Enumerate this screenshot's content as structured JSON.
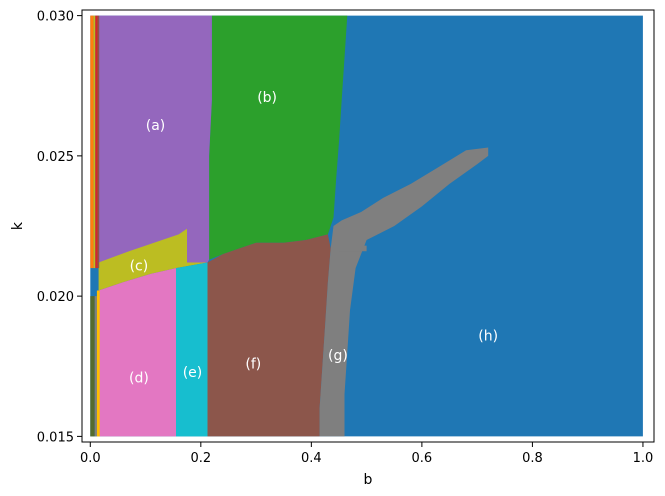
{
  "chart_data": {
    "type": "heatmap",
    "title": "",
    "xlabel": "b",
    "ylabel": "k",
    "xlim": [
      -0.015,
      1.02
    ],
    "ylim": [
      0.0148,
      0.0302
    ],
    "x_ticks": [
      {
        "value": 0.0,
        "label": "0.0"
      },
      {
        "value": 0.2,
        "label": "0.2"
      },
      {
        "value": 0.4,
        "label": "0.4"
      },
      {
        "value": 0.6,
        "label": "0.6"
      },
      {
        "value": 0.8,
        "label": "0.8"
      },
      {
        "value": 1.0,
        "label": "1.0"
      }
    ],
    "y_ticks": [
      {
        "value": 0.015,
        "label": "0.015"
      },
      {
        "value": 0.02,
        "label": "0.020"
      },
      {
        "value": 0.025,
        "label": "0.025"
      },
      {
        "value": 0.03,
        "label": "0.030"
      }
    ],
    "grid": false,
    "regions": [
      {
        "id": "h",
        "label": "(h)",
        "color": "#1f77b4",
        "label_x": 0.72,
        "label_y": 0.0186,
        "polygon": [
          [
            0.0,
            0.015
          ],
          [
            1.0,
            0.015
          ],
          [
            1.0,
            0.03
          ],
          [
            0.0,
            0.03
          ]
        ]
      },
      {
        "id": "b",
        "label": "(b)",
        "color": "#2ca02c",
        "label_x": 0.32,
        "label_y": 0.0271,
        "polygon": [
          [
            0.22,
            0.03
          ],
          [
            0.465,
            0.03
          ],
          [
            0.46,
            0.0285
          ],
          [
            0.455,
            0.027
          ],
          [
            0.45,
            0.0255
          ],
          [
            0.445,
            0.0242
          ],
          [
            0.44,
            0.0228
          ],
          [
            0.43,
            0.0222
          ],
          [
            0.39,
            0.022
          ],
          [
            0.35,
            0.0219
          ],
          [
            0.3,
            0.0219
          ],
          [
            0.27,
            0.0217
          ],
          [
            0.24,
            0.0215
          ],
          [
            0.215,
            0.0213
          ],
          [
            0.215,
            0.025
          ],
          [
            0.22,
            0.027
          ]
        ]
      },
      {
        "id": "a",
        "label": "(a)",
        "color": "#9467bd",
        "label_x": 0.118,
        "label_y": 0.0261,
        "polygon": [
          [
            0.015,
            0.03
          ],
          [
            0.22,
            0.03
          ],
          [
            0.22,
            0.027
          ],
          [
            0.215,
            0.025
          ],
          [
            0.215,
            0.0213
          ],
          [
            0.212,
            0.0212
          ],
          [
            0.175,
            0.0212
          ],
          [
            0.13,
            0.0212
          ],
          [
            0.07,
            0.0212
          ],
          [
            0.015,
            0.0212
          ]
        ]
      },
      {
        "id": "c",
        "label": "(c)",
        "color": "#bcbd22",
        "label_x": 0.088,
        "label_y": 0.0211,
        "polygon": [
          [
            0.015,
            0.0202
          ],
          [
            0.06,
            0.0205
          ],
          [
            0.11,
            0.0208
          ],
          [
            0.155,
            0.021
          ],
          [
            0.212,
            0.0212
          ],
          [
            0.212,
            0.0212
          ],
          [
            0.175,
            0.0212
          ],
          [
            0.175,
            0.0224
          ],
          [
            0.16,
            0.0222
          ],
          [
            0.13,
            0.022
          ],
          [
            0.1,
            0.0218
          ],
          [
            0.07,
            0.0216
          ],
          [
            0.015,
            0.0212
          ]
        ]
      },
      {
        "id": "d",
        "label": "(d)",
        "color": "#e377c2",
        "label_x": 0.088,
        "label_y": 0.0171,
        "polygon": [
          [
            0.015,
            0.015
          ],
          [
            0.155,
            0.015
          ],
          [
            0.155,
            0.021
          ],
          [
            0.11,
            0.0208
          ],
          [
            0.06,
            0.0205
          ],
          [
            0.015,
            0.0202
          ]
        ]
      },
      {
        "id": "e",
        "label": "(e)",
        "color": "#17becf",
        "label_x": 0.185,
        "label_y": 0.0173,
        "polygon": [
          [
            0.155,
            0.015
          ],
          [
            0.212,
            0.015
          ],
          [
            0.212,
            0.0212
          ],
          [
            0.155,
            0.021
          ]
        ]
      },
      {
        "id": "f",
        "label": "(f)",
        "color": "#8c564b",
        "label_x": 0.295,
        "label_y": 0.0176,
        "polygon": [
          [
            0.212,
            0.015
          ],
          [
            0.415,
            0.015
          ],
          [
            0.415,
            0.016
          ],
          [
            0.42,
            0.0175
          ],
          [
            0.425,
            0.019
          ],
          [
            0.43,
            0.0205
          ],
          [
            0.435,
            0.0217
          ],
          [
            0.43,
            0.0222
          ],
          [
            0.39,
            0.022
          ],
          [
            0.35,
            0.0219
          ],
          [
            0.3,
            0.0219
          ],
          [
            0.27,
            0.0217
          ],
          [
            0.24,
            0.0215
          ],
          [
            0.212,
            0.0212
          ]
        ]
      },
      {
        "id": "g",
        "label": "(g)",
        "color": "#7f7f7f",
        "label_x": 0.448,
        "label_y": 0.0179,
        "polygon": [
          [
            0.415,
            0.015
          ],
          [
            0.46,
            0.015
          ],
          [
            0.46,
            0.0165
          ],
          [
            0.465,
            0.018
          ],
          [
            0.47,
            0.0195
          ],
          [
            0.48,
            0.021
          ],
          [
            0.5,
            0.022
          ],
          [
            0.55,
            0.0225
          ],
          [
            0.6,
            0.0232
          ],
          [
            0.65,
            0.024
          ],
          [
            0.7,
            0.0247
          ],
          [
            0.72,
            0.025
          ],
          [
            0.72,
            0.0253
          ],
          [
            0.68,
            0.0252
          ],
          [
            0.63,
            0.0246
          ],
          [
            0.58,
            0.024
          ],
          [
            0.53,
            0.0235
          ],
          [
            0.49,
            0.023
          ],
          [
            0.455,
            0.0227
          ],
          [
            0.44,
            0.0225
          ],
          [
            0.435,
            0.0217
          ],
          [
            0.43,
            0.0205
          ],
          [
            0.425,
            0.019
          ],
          [
            0.42,
            0.0175
          ],
          [
            0.415,
            0.016
          ]
        ]
      },
      {
        "id": "g2",
        "label": "",
        "color": "#7f7f7f",
        "label_x": 0,
        "label_y": 0,
        "polygon": [
          [
            0.45,
            0.0216
          ],
          [
            0.5,
            0.0216
          ],
          [
            0.5,
            0.0218
          ],
          [
            0.45,
            0.0218
          ]
        ]
      }
    ],
    "strips": [
      {
        "color": "#ff7f0e",
        "x0": 0.0,
        "x1": 0.006,
        "y0": 0.021,
        "y1": 0.03
      },
      {
        "color": "#bcbd22",
        "x0": 0.006,
        "x1": 0.009,
        "y0": 0.021,
        "y1": 0.03
      },
      {
        "color": "#d62728",
        "x0": 0.009,
        "x1": 0.013,
        "y0": 0.021,
        "y1": 0.03
      },
      {
        "color": "#8c564b",
        "x0": 0.013,
        "x1": 0.016,
        "y0": 0.021,
        "y1": 0.03
      },
      {
        "color": "#556b2f",
        "x0": 0.0,
        "x1": 0.008,
        "y0": 0.015,
        "y1": 0.02
      },
      {
        "color": "#7f7f7f",
        "x0": 0.008,
        "x1": 0.012,
        "y0": 0.015,
        "y1": 0.02
      },
      {
        "color": "#ffbf00",
        "x0": 0.012,
        "x1": 0.017,
        "y0": 0.015,
        "y1": 0.0202
      }
    ]
  }
}
